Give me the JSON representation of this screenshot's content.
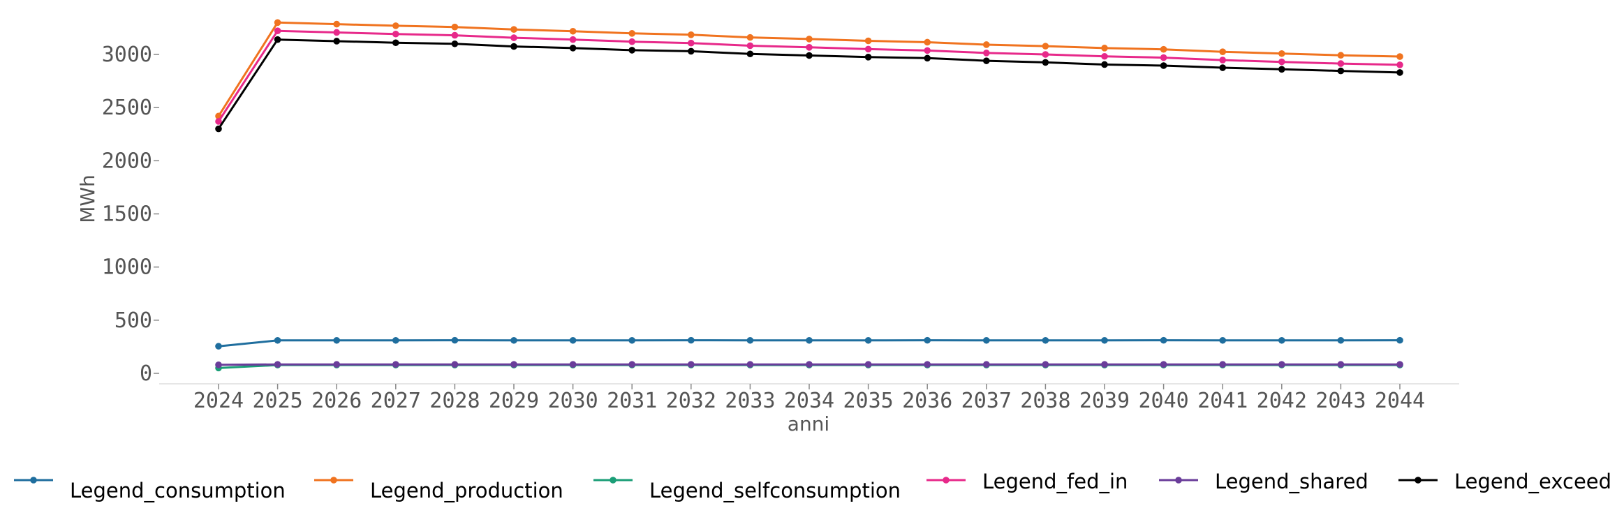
{
  "chart_data": {
    "type": "line",
    "title": "",
    "xlabel": "anni",
    "ylabel": "MWh",
    "x": [
      2024,
      2025,
      2026,
      2027,
      2028,
      2029,
      2030,
      2031,
      2032,
      2033,
      2034,
      2035,
      2036,
      2037,
      2038,
      2039,
      2040,
      2041,
      2042,
      2043,
      2044
    ],
    "x_tick_labels": [
      "2024",
      "2025",
      "2026",
      "2027",
      "2028",
      "2029",
      "2030",
      "2031",
      "2032",
      "2033",
      "2034",
      "2035",
      "2036",
      "2037",
      "2038",
      "2039",
      "2040",
      "2041",
      "2042",
      "2043",
      "2044"
    ],
    "y_ticks": [
      0,
      500,
      1000,
      1500,
      2000,
      2500,
      3000
    ],
    "y_tick_labels": [
      "0",
      "500",
      "1000",
      "1500",
      "2000",
      "2500",
      "3000"
    ],
    "ylim": [
      -100,
      3350
    ],
    "grid": false,
    "legend_placement": "bottom",
    "series": [
      {
        "name": "Legend_consumption",
        "color": "#1f6e9e",
        "values": [
          255,
          310,
          310,
          310,
          311,
          310,
          310,
          310,
          311,
          310,
          310,
          310,
          311,
          310,
          310,
          310,
          311,
          310,
          310,
          310,
          311
        ]
      },
      {
        "name": "Legend_production",
        "color": "#f0731f",
        "values": [
          2420,
          3300,
          3285,
          3270,
          3258,
          3235,
          3218,
          3198,
          3185,
          3160,
          3145,
          3128,
          3115,
          3092,
          3078,
          3060,
          3048,
          3025,
          3008,
          2992,
          2980
        ]
      },
      {
        "name": "Legend_selfconsumption",
        "color": "#1b9e77",
        "values": [
          50,
          78,
          78,
          78,
          78,
          78,
          78,
          78,
          78,
          78,
          78,
          78,
          78,
          78,
          78,
          78,
          78,
          78,
          78,
          78,
          78
        ]
      },
      {
        "name": "Legend_fed_in",
        "color": "#e7298a",
        "values": [
          2370,
          3222,
          3207,
          3192,
          3180,
          3157,
          3140,
          3120,
          3107,
          3082,
          3067,
          3050,
          3037,
          3014,
          3000,
          2982,
          2970,
          2947,
          2930,
          2914,
          2902
        ]
      },
      {
        "name": "Legend_shared",
        "color": "#6a3d9a",
        "values": [
          80,
          84,
          84,
          84,
          84,
          84,
          84,
          84,
          84,
          84,
          84,
          84,
          84,
          84,
          84,
          84,
          84,
          84,
          84,
          84,
          84
        ]
      },
      {
        "name": "Legend_exceed",
        "color": "#000000",
        "values": [
          2300,
          3140,
          3125,
          3110,
          3100,
          3075,
          3060,
          3040,
          3030,
          3005,
          2990,
          2975,
          2965,
          2940,
          2925,
          2905,
          2895,
          2875,
          2860,
          2845,
          2830
        ]
      }
    ]
  }
}
